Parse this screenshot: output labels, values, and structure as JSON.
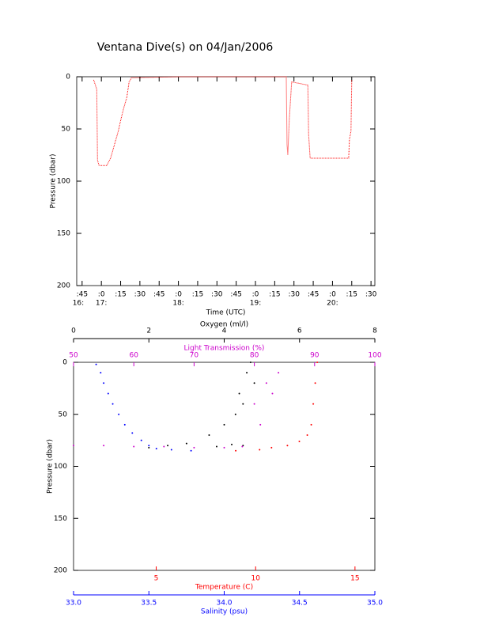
{
  "chart_data": [
    {
      "type": "line",
      "title": "Ventana Dive(s) on 04/Jan/2006",
      "xlabel": "Time (UTC)",
      "ylabel": "Pressure (dbar)",
      "xlim": [
        16.68,
        20.55
      ],
      "ylim": [
        0,
        200
      ],
      "y_inverted": true,
      "xticks": [
        {
          "value": 16.75,
          "label": ":45"
        },
        {
          "value": 17,
          "label": ":0"
        },
        {
          "value": 17.25,
          "label": ":15"
        },
        {
          "value": 17.5,
          "label": ":30"
        },
        {
          "value": 17.75,
          "label": ":45"
        },
        {
          "value": 18,
          "label": ":0"
        },
        {
          "value": 18.25,
          "label": ":15"
        },
        {
          "value": 18.5,
          "label": ":30"
        },
        {
          "value": 18.75,
          "label": ":45"
        },
        {
          "value": 19,
          "label": ":0"
        },
        {
          "value": 19.25,
          "label": ":15"
        },
        {
          "value": 19.5,
          "label": ":30"
        },
        {
          "value": 19.75,
          "label": ":45"
        },
        {
          "value": 20,
          "label": ":0"
        },
        {
          "value": 20.25,
          "label": ":15"
        },
        {
          "value": 20.5,
          "label": ":30"
        }
      ],
      "hour_labels": [
        {
          "value": 16.7,
          "label": "16:"
        },
        {
          "value": 17,
          "label": "17:"
        },
        {
          "value": 18,
          "label": "18:"
        },
        {
          "value": 19,
          "label": "19:"
        },
        {
          "value": 20,
          "label": "20:"
        }
      ],
      "yticks": [
        0,
        50,
        100,
        150,
        200
      ],
      "series": [
        {
          "color": "#ff0000",
          "x": [
            16.9,
            16.94,
            16.95,
            16.97,
            17.07,
            17.12,
            17.17,
            17.22,
            17.25,
            17.29,
            17.33,
            17.36,
            17.39,
            18.0,
            19.4,
            19.41,
            19.42,
            19.44,
            19.47,
            19.68,
            19.69,
            19.71,
            20.21,
            20.22,
            20.24,
            20.25
          ],
          "values": [
            3,
            12,
            80,
            85,
            85,
            78,
            65,
            52,
            42,
            30,
            20,
            5,
            1,
            0,
            0,
            65,
            75,
            40,
            5,
            8,
            55,
            78,
            78,
            60,
            52,
            3
          ]
        }
      ]
    },
    {
      "type": "scatter",
      "ylabel": "Pressure (dbar)",
      "ylim": [
        0,
        200
      ],
      "y_inverted": true,
      "yticks": [
        0,
        50,
        100,
        150,
        200
      ],
      "x_axes": [
        {
          "label": "Oxygen (ml/l)",
          "color": "#000000",
          "position": "top",
          "xlim": [
            0,
            8
          ],
          "xticks": [
            0,
            2,
            4,
            6,
            8
          ]
        },
        {
          "label": "Light Transmission (%)",
          "color": "#cc00cc",
          "position": "top",
          "xlim": [
            50,
            100
          ],
          "xticks": [
            50,
            60,
            70,
            80,
            90,
            100
          ]
        },
        {
          "label": "Temperature (C)",
          "color": "#ff0000",
          "position": "bottom",
          "xlim": [
            0.84,
            16
          ],
          "xticks": [
            5,
            10,
            15
          ]
        },
        {
          "label": "Salinity (psu)",
          "color": "#0000ff",
          "position": "bottom",
          "xlim": [
            33,
            35
          ],
          "xticks": [
            {
              "value": 33,
              "label": "33.0"
            },
            {
              "value": 33.5,
              "label": "33.5"
            },
            {
              "value": 34,
              "label": "34.0"
            },
            {
              "value": 34.5,
              "label": "34.5"
            },
            {
              "value": 35,
              "label": "35.0"
            }
          ]
        }
      ],
      "series": [
        {
          "axis": 0,
          "color": "#000000",
          "x": [
            4.7,
            4.6,
            4.8,
            4.4,
            4.5,
            4.3,
            4.0,
            3.6,
            3.0,
            2.5,
            2.0,
            4.5,
            4.2,
            3.8
          ],
          "values": [
            0,
            10,
            20,
            30,
            40,
            50,
            60,
            70,
            78,
            80,
            82,
            80,
            79,
            81
          ]
        },
        {
          "axis": 1,
          "color": "#cc00cc",
          "x": [
            50,
            55,
            60,
            65,
            70,
            75,
            78,
            80,
            82,
            84,
            81,
            83
          ],
          "values": [
            80,
            80,
            81,
            81,
            82,
            82,
            81,
            40,
            20,
            10,
            60,
            30
          ]
        },
        {
          "axis": 2,
          "color": "#ff0000",
          "x": [
            13.1,
            13.0,
            12.9,
            12.8,
            12.6,
            12.2,
            11.6,
            10.8,
            10.2,
            9.0
          ],
          "values": [
            0,
            20,
            40,
            60,
            70,
            76,
            80,
            82,
            84,
            85
          ]
        },
        {
          "axis": 3,
          "color": "#0000ff",
          "x": [
            33.15,
            33.18,
            33.2,
            33.23,
            33.26,
            33.3,
            33.34,
            33.39,
            33.45,
            33.5,
            33.55,
            33.65,
            33.78
          ],
          "values": [
            2,
            10,
            20,
            30,
            40,
            50,
            60,
            68,
            75,
            80,
            83,
            84,
            85
          ]
        }
      ]
    }
  ]
}
